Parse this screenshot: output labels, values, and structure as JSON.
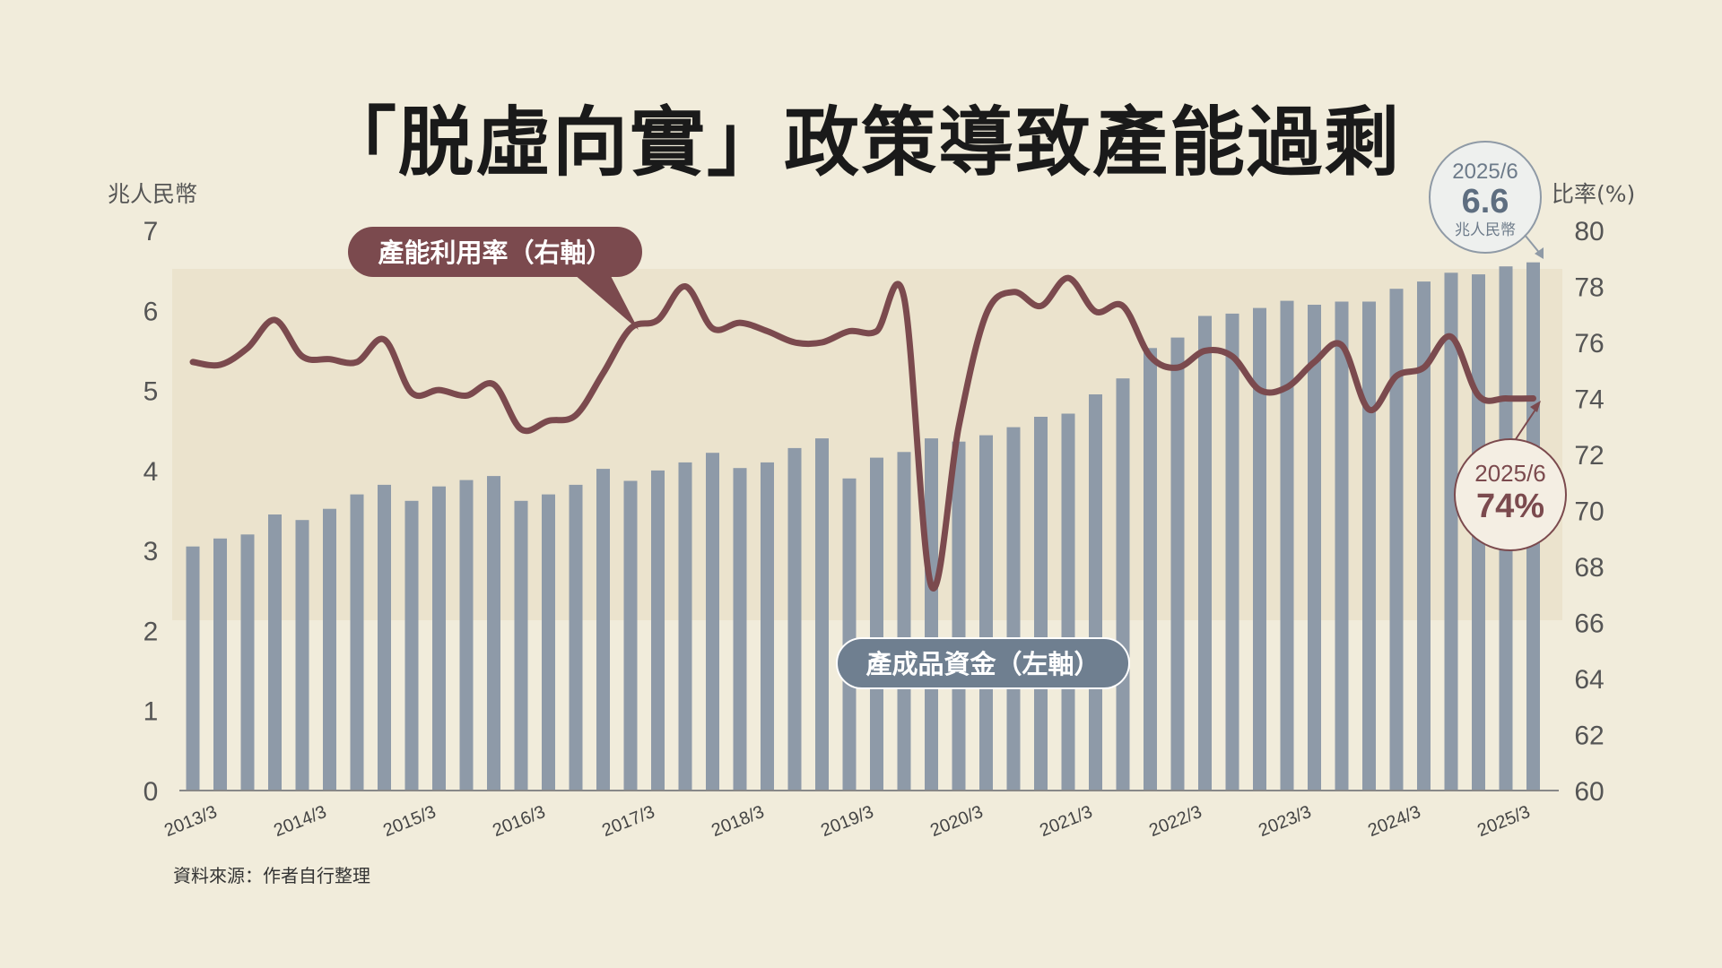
{
  "title": "「脱虛向實」政策導致產能過剩",
  "source": "資料來源：作者自行整理",
  "colors": {
    "background": "#f1ecdb",
    "bar": "#8e9aa8",
    "line": "#7b4a4e",
    "label_bar_bg": "#6f7f90",
    "label_line_bg": "#7b4a4e"
  },
  "chart_data": {
    "type": "bar+line",
    "title": "「脱虛向實」政策導致產能過剩",
    "left_axis": {
      "unit": "兆人民幣",
      "range": [
        0,
        7
      ],
      "ticks": [
        "0",
        "1",
        "2",
        "3",
        "4",
        "5",
        "6",
        "7"
      ]
    },
    "right_axis": {
      "unit": "比率(%)",
      "range": [
        60,
        80
      ],
      "ticks": [
        "60",
        "62",
        "64",
        "66",
        "68",
        "70",
        "72",
        "74",
        "76",
        "78",
        "80"
      ]
    },
    "x_tick_labels": [
      "2013/3",
      "2014/3",
      "2015/3",
      "2016/3",
      "2017/3",
      "2018/3",
      "2019/3",
      "2020/3",
      "2021/3",
      "2022/3",
      "2023/3",
      "2024/3",
      "2025/3"
    ],
    "periods": [
      "2013/3",
      "2013/6",
      "2013/9",
      "2013/12",
      "2014/3",
      "2014/6",
      "2014/9",
      "2014/12",
      "2015/3",
      "2015/6",
      "2015/9",
      "2015/12",
      "2016/3",
      "2016/6",
      "2016/9",
      "2016/12",
      "2017/3",
      "2017/6",
      "2017/9",
      "2017/12",
      "2018/3",
      "2018/6",
      "2018/9",
      "2018/12",
      "2019/3",
      "2019/6",
      "2019/9",
      "2019/12",
      "2020/3",
      "2020/6",
      "2020/9",
      "2020/12",
      "2021/3",
      "2021/6",
      "2021/9",
      "2021/12",
      "2022/3",
      "2022/6",
      "2022/9",
      "2022/12",
      "2023/3",
      "2023/6",
      "2023/9",
      "2023/12",
      "2024/3",
      "2024/6",
      "2024/9",
      "2024/12",
      "2025/3",
      "2025/6"
    ],
    "series": [
      {
        "name": "產成品資金（左軸）",
        "type": "bar",
        "axis": "left",
        "values": [
          3.05,
          3.15,
          3.2,
          3.45,
          3.38,
          3.52,
          3.7,
          3.82,
          3.62,
          3.8,
          3.88,
          3.93,
          3.62,
          3.7,
          3.82,
          4.02,
          3.87,
          4.0,
          4.1,
          4.22,
          4.03,
          4.1,
          4.28,
          4.4,
          3.9,
          4.16,
          4.23,
          4.4,
          4.36,
          4.44,
          4.54,
          4.67,
          4.71,
          4.95,
          5.15,
          5.53,
          5.66,
          5.93,
          5.96,
          6.03,
          6.12,
          6.07,
          6.11,
          6.11,
          6.27,
          6.36,
          6.47,
          6.45,
          6.55,
          6.6
        ]
      },
      {
        "name": "產能利用率（右軸）",
        "type": "line",
        "axis": "right",
        "values": [
          75.3,
          75.2,
          75.8,
          76.8,
          75.5,
          75.4,
          75.3,
          76.1,
          74.2,
          74.3,
          74.1,
          74.5,
          72.9,
          73.2,
          73.4,
          74.9,
          76.5,
          76.8,
          78.0,
          76.5,
          76.7,
          76.4,
          76.0,
          76.0,
          76.4,
          76.4,
          77.6,
          67.3,
          73.0,
          77.0,
          77.8,
          77.3,
          78.3,
          77.1,
          77.3,
          75.5,
          75.1,
          75.7,
          75.5,
          74.3,
          74.4,
          75.3,
          75.9,
          73.6,
          74.8,
          75.1,
          76.2,
          74.1,
          74.0,
          74.0
        ]
      }
    ],
    "annotations": [
      {
        "date": "2025/6",
        "value": "6.6",
        "unit": "兆人民幣"
      },
      {
        "date": "2025/6",
        "value": "74%"
      }
    ]
  }
}
